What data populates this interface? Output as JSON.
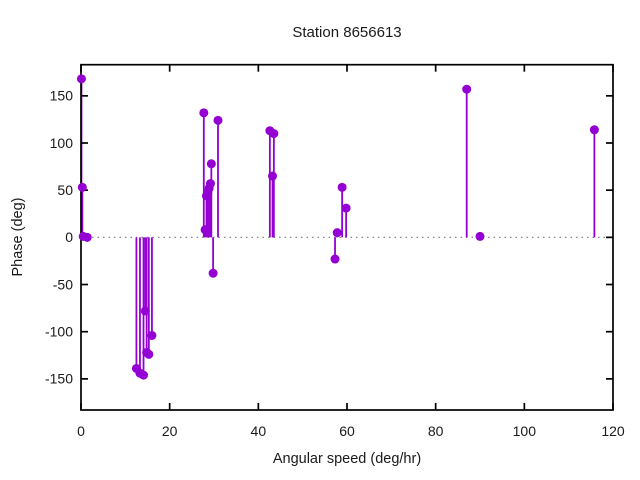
{
  "window": {
    "background": "#ffffff"
  },
  "chart_data": {
    "type": "scatter",
    "style": "impulses-with-points",
    "title": "Station 8656613",
    "xlabel": "Angular speed (deg/hr)",
    "ylabel": "Phase (deg)",
    "xlim": [
      0,
      120
    ],
    "ylim": [
      -183,
      183
    ],
    "xticks": [
      0,
      20,
      40,
      60,
      80,
      100,
      120
    ],
    "yticks": [
      -150,
      -100,
      -50,
      0,
      50,
      100,
      150
    ],
    "grid": false,
    "legend": "none",
    "zero_line": {
      "y": 0,
      "color": "#8a8a8a",
      "dotted": true
    },
    "axis_color": "#000000",
    "series": [
      {
        "name": "phase",
        "color": "#9400d3",
        "marker": "filled-circle",
        "points": [
          [
            0.1,
            168
          ],
          [
            0.3,
            53
          ],
          [
            0.5,
            1
          ],
          [
            1.4,
            0
          ],
          [
            12.5,
            -139
          ],
          [
            13.3,
            -144
          ],
          [
            14.1,
            -146
          ],
          [
            14.5,
            -78
          ],
          [
            14.8,
            -122
          ],
          [
            15.3,
            -124
          ],
          [
            16.0,
            -104
          ],
          [
            27.7,
            132
          ],
          [
            28.0,
            8
          ],
          [
            28.3,
            44
          ],
          [
            28.6,
            47
          ],
          [
            28.9,
            52
          ],
          [
            29.2,
            57
          ],
          [
            29.4,
            78
          ],
          [
            29.8,
            -38
          ],
          [
            30.9,
            124
          ],
          [
            42.6,
            113
          ],
          [
            43.2,
            65
          ],
          [
            43.5,
            110
          ],
          [
            57.3,
            -23
          ],
          [
            57.8,
            5
          ],
          [
            58.9,
            53
          ],
          [
            59.8,
            31
          ],
          [
            87.0,
            157
          ],
          [
            90.0,
            1
          ],
          [
            115.8,
            114
          ]
        ]
      }
    ]
  }
}
